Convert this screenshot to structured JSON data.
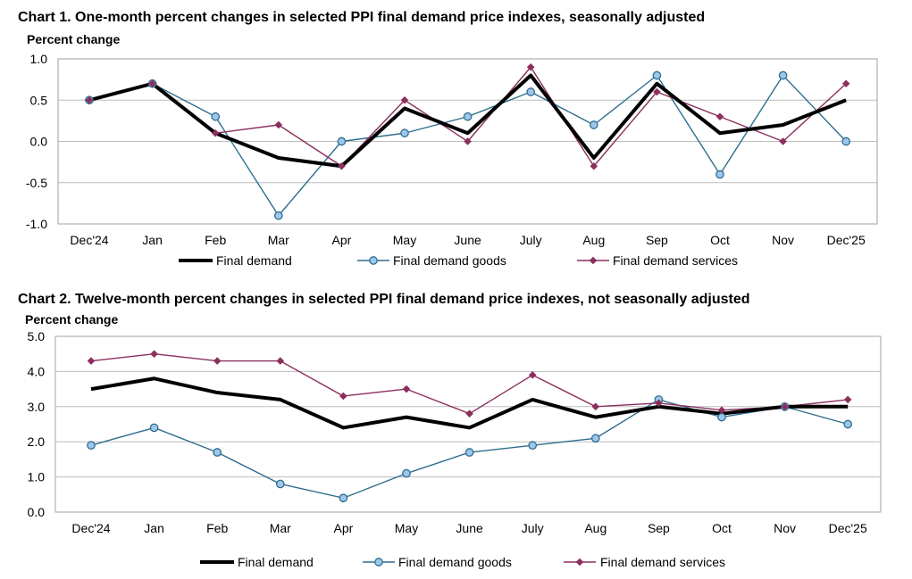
{
  "chart_data": [
    {
      "type": "line",
      "title": "Chart 1. One-month percent changes in selected PPI final demand price indexes, seasonally adjusted",
      "ylabel": "Percent change",
      "xlabel": "",
      "categories": [
        "Dec'24",
        "Jan",
        "Feb",
        "Mar",
        "Apr",
        "May",
        "June",
        "July",
        "Aug",
        "Sep",
        "Oct",
        "Nov",
        "Dec'25"
      ],
      "yticks": [
        "1.0",
        "0.5",
        "0.0",
        "-0.5",
        "-1.0"
      ],
      "ylim": [
        -1.0,
        1.0
      ],
      "grid": true,
      "legend_position": "bottom",
      "series": [
        {
          "name": "Final demand",
          "color": "#000000",
          "marker": "none",
          "values": [
            0.5,
            0.7,
            0.1,
            -0.2,
            -0.3,
            0.4,
            0.1,
            0.8,
            -0.2,
            0.7,
            0.1,
            0.2,
            0.5
          ]
        },
        {
          "name": "Final demand goods",
          "color": "#2e6e8e",
          "marker": "circle",
          "values": [
            0.5,
            0.7,
            0.3,
            -0.9,
            0.0,
            0.1,
            0.3,
            0.6,
            0.2,
            0.8,
            -0.4,
            0.8,
            0.0
          ]
        },
        {
          "name": "Final demand services",
          "color": "#8b2f5e",
          "marker": "diamond",
          "values": [
            0.5,
            0.7,
            0.1,
            0.2,
            -0.3,
            0.5,
            0.0,
            0.9,
            -0.3,
            0.6,
            0.3,
            0.0,
            0.7
          ]
        }
      ]
    },
    {
      "type": "line",
      "title": "Chart 2. Twelve-month percent changes in selected PPI final demand price indexes, not seasonally adjusted",
      "ylabel": "Percent change",
      "xlabel": "",
      "categories": [
        "Dec'24",
        "Jan",
        "Feb",
        "Mar",
        "Apr",
        "May",
        "June",
        "July",
        "Aug",
        "Sep",
        "Oct",
        "Nov",
        "Dec'25"
      ],
      "yticks": [
        "5.0",
        "4.0",
        "3.0",
        "2.0",
        "1.0",
        "0.0"
      ],
      "ylim": [
        0.0,
        5.0
      ],
      "grid": true,
      "legend_position": "bottom",
      "series": [
        {
          "name": "Final demand",
          "color": "#000000",
          "marker": "none",
          "values": [
            3.5,
            3.8,
            3.4,
            3.2,
            2.4,
            2.7,
            2.4,
            3.2,
            2.7,
            3.0,
            2.8,
            3.0,
            3.0
          ]
        },
        {
          "name": "Final demand goods",
          "color": "#2e6e8e",
          "marker": "circle",
          "values": [
            1.9,
            2.4,
            1.7,
            0.8,
            0.4,
            1.1,
            1.7,
            1.9,
            2.1,
            3.2,
            2.7,
            3.0,
            2.5
          ]
        },
        {
          "name": "Final demand services",
          "color": "#8b2f5e",
          "marker": "diamond",
          "values": [
            4.3,
            4.5,
            4.3,
            4.3,
            3.3,
            3.5,
            2.8,
            3.9,
            3.0,
            3.1,
            2.9,
            3.0,
            3.2
          ]
        }
      ]
    }
  ]
}
